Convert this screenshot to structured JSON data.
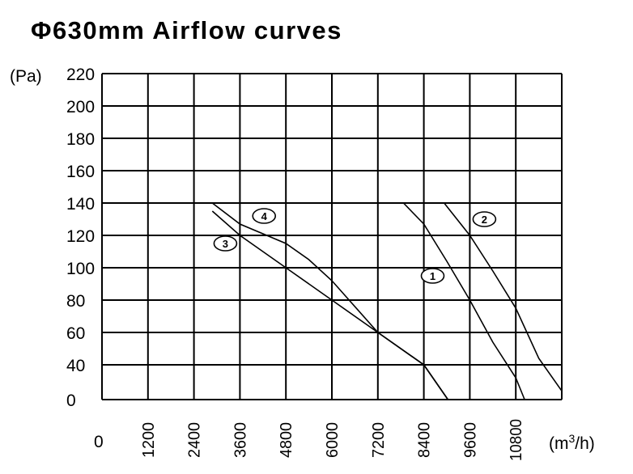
{
  "chart_data": {
    "type": "line",
    "title": "Φ630mm Airflow curves",
    "ylabel": "(Pa)",
    "xlabel": "(m³/h)",
    "xlabel_base": "(m",
    "xlabel_sup": "3",
    "xlabel_tail": "/h)",
    "x_origin_label": "0",
    "xlim": [
      0,
      12000
    ],
    "ylim": [
      0,
      220
    ],
    "grid": true,
    "x_ticks": [
      "1200",
      "2400",
      "3600",
      "4800",
      "6000",
      "7200",
      "8400",
      "9600",
      "10800"
    ],
    "y_ticks": [
      "220",
      "200",
      "180",
      "160",
      "140",
      "120",
      "100",
      "80",
      "60",
      "40",
      "0"
    ],
    "series": [
      {
        "name": "1",
        "x": [
          7870,
          8400,
          9000,
          9600,
          10200,
          10800,
          11030
        ],
        "y": [
          140,
          127,
          104,
          80,
          54,
          25,
          0
        ]
      },
      {
        "name": "2",
        "x": [
          8930,
          9600,
          10200,
          10800,
          11400,
          12000
        ],
        "y": [
          140,
          120,
          98,
          75,
          44,
          10
        ]
      },
      {
        "name": "3",
        "x": [
          2880,
          3600,
          4800,
          6000,
          7200,
          8400,
          9030
        ],
        "y": [
          135,
          120,
          100,
          80,
          60,
          40,
          0
        ]
      },
      {
        "name": "4",
        "x": [
          2880,
          3600,
          4800,
          5400,
          6000,
          7200,
          8400,
          9030
        ],
        "y": [
          140,
          127,
          115,
          105,
          92,
          60,
          40,
          0
        ]
      }
    ],
    "annotations": [
      {
        "text": "1",
        "x": 8630,
        "y": 95
      },
      {
        "text": "2",
        "x": 9980,
        "y": 130
      },
      {
        "text": "3",
        "x": 3220,
        "y": 115
      },
      {
        "text": "4",
        "x": 4230,
        "y": 132
      }
    ]
  }
}
